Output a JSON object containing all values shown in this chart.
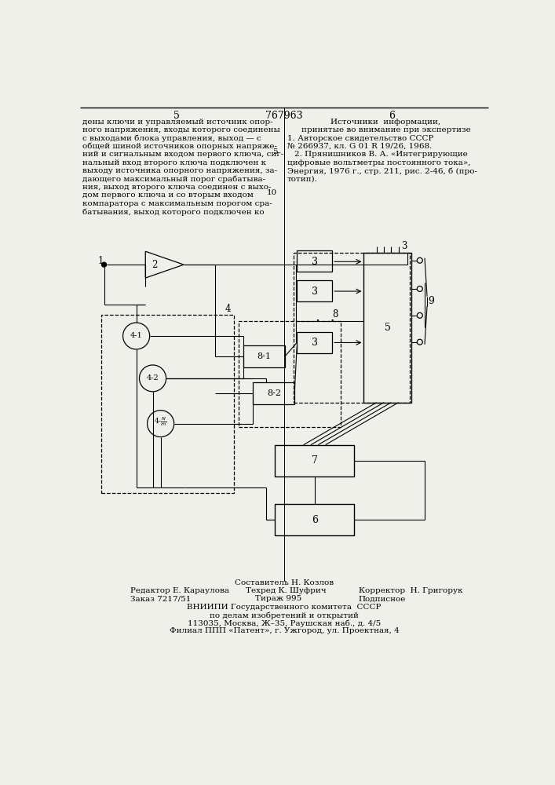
{
  "page_title": "767963",
  "col_left_num": "5",
  "col_right_num": "6",
  "bg_color": "#f0f0eb",
  "footer_composer": "Составитель Н. Козлов",
  "footer_editor": "Редактор Е. Караулова",
  "footer_techred": "Техред К. Шуфрич",
  "footer_corrector": "Корректор  Н. Григорук",
  "footer_order": "Заказ 7217/51",
  "footer_tirazh": "Тираж 995",
  "footer_podpisnoe": "Подписное",
  "footer_org1": "ВНИИПИ Государственного комитета  СССР",
  "footer_org2": "по делам изобретений и открытий",
  "footer_addr1": "113035, Москва, Ж–35, Раушская наб., д. 4/5",
  "footer_addr2": "Филиал ППП «Патент», г. Ужгород, ул. Проектная, 4"
}
